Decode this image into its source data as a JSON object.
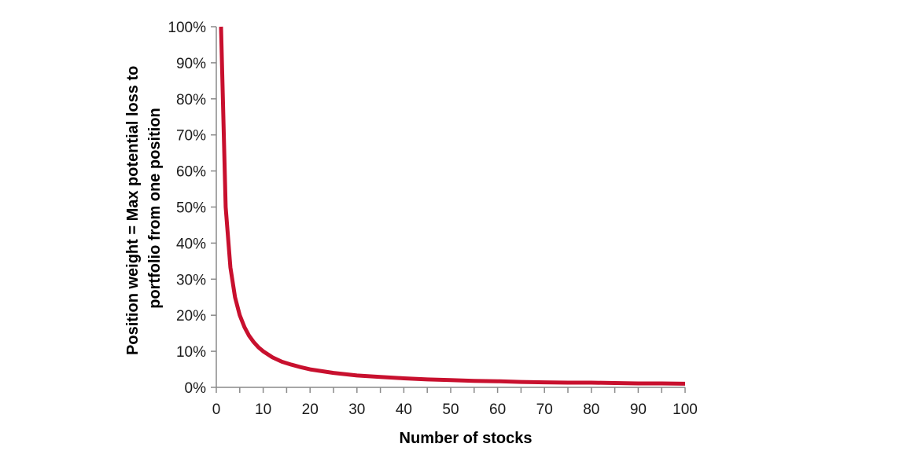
{
  "chart_data": {
    "type": "line",
    "title": "",
    "xlabel": "Number of stocks",
    "ylabel_lines": [
      "Position weight = Max potential loss to",
      "portfolio from one position"
    ],
    "xlim": [
      0,
      100
    ],
    "ylim": [
      0,
      100
    ],
    "x_ticks": [
      0,
      10,
      20,
      30,
      40,
      50,
      60,
      70,
      80,
      90,
      100
    ],
    "x_tick_labels": [
      "0",
      "10",
      "20",
      "30",
      "40",
      "50",
      "60",
      "70",
      "80",
      "90",
      "100"
    ],
    "y_ticks": [
      0,
      10,
      20,
      30,
      40,
      50,
      60,
      70,
      80,
      90,
      100
    ],
    "y_tick_labels": [
      "0%",
      "10%",
      "20%",
      "30%",
      "40%",
      "50%",
      "60%",
      "70%",
      "80%",
      "90%",
      "100%"
    ],
    "grid": false,
    "legend": "none",
    "line_color": "#c8102e",
    "series": [
      {
        "x": [
          1,
          2,
          3,
          4,
          5,
          6,
          7,
          8,
          9,
          10,
          12,
          14,
          16,
          18,
          20,
          25,
          30,
          35,
          40,
          45,
          50,
          55,
          60,
          65,
          70,
          75,
          80,
          85,
          90,
          95,
          100
        ],
        "values": [
          100,
          50,
          33.3,
          25,
          20,
          16.7,
          14.3,
          12.5,
          11.1,
          10,
          8.3,
          7.1,
          6.3,
          5.6,
          5,
          4,
          3.3,
          2.9,
          2.5,
          2.2,
          2,
          1.8,
          1.7,
          1.5,
          1.4,
          1.3,
          1.3,
          1.2,
          1.1,
          1.1,
          1
        ]
      }
    ]
  }
}
